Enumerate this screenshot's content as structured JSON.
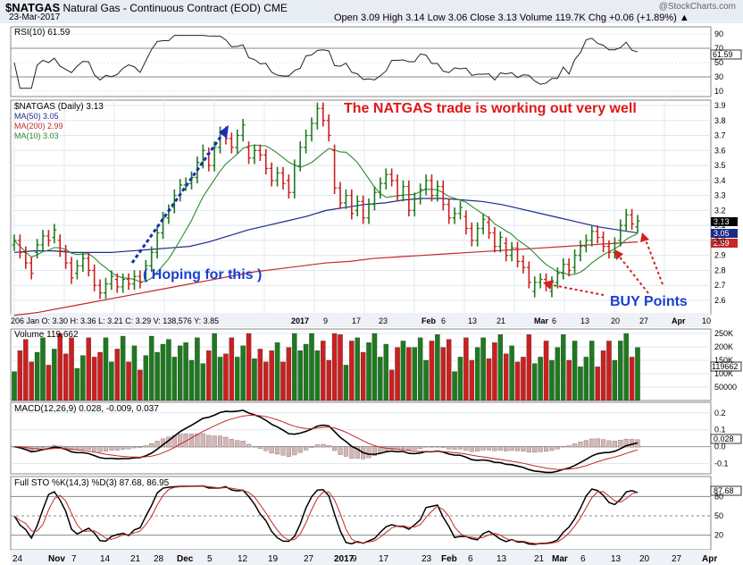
{
  "header": {
    "symbol": "$NATGAS",
    "description": "Natural Gas - Continuous Contract (EOD)",
    "exchange": "CME",
    "date": "23-Mar-2017",
    "ohlc_text": "Open 3.09  High 3.14  Low 3.06  Close 3.13  Volume 119.7K  Chg +0.06 (+1.89%) ▲",
    "watermark": "@StockCharts.com"
  },
  "colors": {
    "up": "#1e7a1e",
    "down": "#cc1f1f",
    "ma50": "#1b2a8a",
    "ma200": "#c62828",
    "ma10": "#2e8b2e",
    "price_line": "#f4a6a6",
    "panel_bg": "#ffffff"
  },
  "rsi_panel": {
    "label": "RSI(10) 61.59",
    "value_tag": "61.59",
    "ticks": [
      "90",
      "70",
      "50",
      "30",
      "10"
    ]
  },
  "price_panel": {
    "legend": [
      {
        "name": "$NATGAS (Daily) 3.13"
      },
      {
        "name": "MA(50) 3.05"
      },
      {
        "name": "MA(200) 2.99"
      },
      {
        "name": "MA(10) 3.03"
      }
    ],
    "annotation_title": "The NATGAS trade is working out very well",
    "annotation_hope": "( Hoping for this )",
    "annotation_buy": "BUY Points",
    "tags": [
      "3.13",
      "3.05",
      "3.03",
      "2.99"
    ],
    "y_ticks": [
      "3.9",
      "3.8",
      "3.7",
      "3.6",
      "3.5",
      "3.4",
      "3.3",
      "3.2",
      "3.1",
      "3.0",
      "2.9",
      "2.8",
      "2.7",
      "2.6"
    ],
    "info_line": "206 Jan  O: 3.30   H: 3.36   L: 3.21   C: 3.29   V: 138,576   Y: 3.85",
    "date_row": [
      "2017",
      "9",
      "17",
      "23",
      "Feb",
      "6",
      "13",
      "21",
      "Mar",
      "6",
      "13",
      "20",
      "27",
      "Apr",
      "10"
    ]
  },
  "volume_panel": {
    "label": "Volume 119,662",
    "value_tag": "119662",
    "ticks": [
      "250K",
      "200K",
      "150K",
      "100K",
      "50000"
    ]
  },
  "macd_panel": {
    "label": "MACD(12,26,9) 0.028, -0.009, 0.037",
    "value_tag": "0.028",
    "ticks": [
      "0.2",
      "0.1",
      "0.0",
      "-0.1"
    ]
  },
  "sto_panel": {
    "label": "Full STO %K(14,3) %D(3) 87.68, 86.95",
    "value_tag": "87.68",
    "ticks": [
      "80",
      "50",
      "20"
    ]
  },
  "x_axis": [
    "24",
    "Nov",
    "7",
    "14",
    "21",
    "28",
    "Dec",
    "5",
    "12",
    "19",
    "27",
    "2017",
    "9",
    "17",
    "23",
    "Feb",
    "6",
    "13",
    "21",
    "Mar",
    "6",
    "13",
    "20",
    "27",
    "Apr",
    "10"
  ],
  "chart_data": {
    "type": "candlestick",
    "title": "$NATGAS (Daily) 3.13",
    "x_range": [
      "24-Oct-2016",
      "23-Mar-2017"
    ],
    "ylim": [
      2.55,
      3.95
    ],
    "bars": [
      {
        "o": 2.97,
        "c": 3.0
      },
      {
        "o": 3.0,
        "c": 2.92
      },
      {
        "o": 2.92,
        "c": 2.85
      },
      {
        "o": 2.85,
        "c": 2.78
      },
      {
        "o": 2.92,
        "c": 2.97
      },
      {
        "o": 2.97,
        "c": 3.03
      },
      {
        "o": 3.03,
        "c": 3.0
      },
      {
        "o": 3.02,
        "c": 3.07
      },
      {
        "o": 3.0,
        "c": 2.93
      },
      {
        "o": 2.93,
        "c": 2.85
      },
      {
        "o": 2.85,
        "c": 2.75
      },
      {
        "o": 2.78,
        "c": 2.83
      },
      {
        "o": 2.83,
        "c": 2.88
      },
      {
        "o": 2.88,
        "c": 2.8
      },
      {
        "o": 2.8,
        "c": 2.7
      },
      {
        "o": 2.7,
        "c": 2.65
      },
      {
        "o": 2.65,
        "c": 2.71
      },
      {
        "o": 2.71,
        "c": 2.76
      },
      {
        "o": 2.74,
        "c": 2.69
      },
      {
        "o": 2.69,
        "c": 2.74
      },
      {
        "o": 2.74,
        "c": 2.71
      },
      {
        "o": 2.71,
        "c": 2.76
      },
      {
        "o": 2.76,
        "c": 2.72
      },
      {
        "o": 2.78,
        "c": 2.83
      },
      {
        "o": 2.83,
        "c": 2.92
      },
      {
        "o": 2.92,
        "c": 3.05
      },
      {
        "o": 3.05,
        "c": 3.15
      },
      {
        "o": 3.15,
        "c": 3.2
      },
      {
        "o": 3.22,
        "c": 3.3
      },
      {
        "o": 3.3,
        "c": 3.37
      },
      {
        "o": 3.37,
        "c": 3.38
      },
      {
        "o": 3.38,
        "c": 3.42
      },
      {
        "o": 3.42,
        "c": 3.52
      },
      {
        "o": 3.52,
        "c": 3.6
      },
      {
        "o": 3.58,
        "c": 3.5
      },
      {
        "o": 3.5,
        "c": 3.62
      },
      {
        "o": 3.62,
        "c": 3.72
      },
      {
        "o": 3.72,
        "c": 3.68
      },
      {
        "o": 3.68,
        "c": 3.62
      },
      {
        "o": 3.62,
        "c": 3.7
      },
      {
        "o": 3.7,
        "c": 3.77
      },
      {
        "o": 3.62,
        "c": 3.55
      },
      {
        "o": 3.55,
        "c": 3.6
      },
      {
        "o": 3.6,
        "c": 3.57
      },
      {
        "o": 3.57,
        "c": 3.48
      },
      {
        "o": 3.48,
        "c": 3.4
      },
      {
        "o": 3.4,
        "c": 3.45
      },
      {
        "o": 3.45,
        "c": 3.38
      },
      {
        "o": 3.4,
        "c": 3.32
      },
      {
        "o": 3.32,
        "c": 3.5
      },
      {
        "o": 3.5,
        "c": 3.62
      },
      {
        "o": 3.62,
        "c": 3.7
      },
      {
        "o": 3.7,
        "c": 3.78
      },
      {
        "o": 3.78,
        "c": 3.88
      },
      {
        "o": 3.88,
        "c": 3.8
      },
      {
        "o": 3.8,
        "c": 3.7
      },
      {
        "o": 3.6,
        "c": 3.35
      },
      {
        "o": 3.35,
        "c": 3.25
      },
      {
        "o": 3.25,
        "c": 3.3
      },
      {
        "o": 3.3,
        "c": 3.18
      },
      {
        "o": 3.2,
        "c": 3.26
      },
      {
        "o": 3.26,
        "c": 3.15
      },
      {
        "o": 3.15,
        "c": 3.24
      },
      {
        "o": 3.24,
        "c": 3.32
      },
      {
        "o": 3.32,
        "c": 3.38
      },
      {
        "o": 3.38,
        "c": 3.44
      },
      {
        "o": 3.44,
        "c": 3.4
      },
      {
        "o": 3.4,
        "c": 3.3
      },
      {
        "o": 3.3,
        "c": 3.36
      },
      {
        "o": 3.36,
        "c": 3.2
      },
      {
        "o": 3.2,
        "c": 3.28
      },
      {
        "o": 3.28,
        "c": 3.34
      },
      {
        "o": 3.34,
        "c": 3.4
      },
      {
        "o": 3.4,
        "c": 3.3
      },
      {
        "o": 3.3,
        "c": 3.36
      },
      {
        "o": 3.36,
        "c": 3.24
      },
      {
        "o": 3.24,
        "c": 3.15
      },
      {
        "o": 3.15,
        "c": 3.18
      },
      {
        "o": 3.18,
        "c": 3.22
      },
      {
        "o": 3.16,
        "c": 3.08
      },
      {
        "o": 3.08,
        "c": 3.0
      },
      {
        "o": 3.0,
        "c": 3.08
      },
      {
        "o": 3.08,
        "c": 3.14
      },
      {
        "o": 3.12,
        "c": 3.05
      },
      {
        "o": 3.05,
        "c": 2.96
      },
      {
        "o": 2.96,
        "c": 3.02
      },
      {
        "o": 2.98,
        "c": 2.9
      },
      {
        "o": 2.9,
        "c": 2.95
      },
      {
        "o": 2.95,
        "c": 2.86
      },
      {
        "o": 2.86,
        "c": 2.82
      },
      {
        "o": 2.82,
        "c": 2.72
      },
      {
        "o": 2.66,
        "c": 2.72
      },
      {
        "o": 2.72,
        "c": 2.74
      },
      {
        "o": 2.74,
        "c": 2.7
      },
      {
        "o": 2.66,
        "c": 2.72
      },
      {
        "o": 2.72,
        "c": 2.78
      },
      {
        "o": 2.78,
        "c": 2.84
      },
      {
        "o": 2.84,
        "c": 2.8
      },
      {
        "o": 2.82,
        "c": 2.9
      },
      {
        "o": 2.9,
        "c": 2.96
      },
      {
        "o": 2.96,
        "c": 3.0
      },
      {
        "o": 3.0,
        "c": 3.06
      },
      {
        "o": 3.06,
        "c": 3.02
      },
      {
        "o": 3.02,
        "c": 2.96
      },
      {
        "o": 2.96,
        "c": 2.92
      },
      {
        "o": 2.92,
        "c": 2.98
      },
      {
        "o": 3.0,
        "c": 3.1
      },
      {
        "o": 3.1,
        "c": 3.17
      },
      {
        "o": 3.17,
        "c": 3.11
      },
      {
        "o": 3.09,
        "c": 3.13
      }
    ],
    "series": [
      {
        "name": "MA(50) 3.05",
        "values": [
          2.92,
          2.93,
          2.93,
          2.92,
          2.92,
          2.92,
          2.93,
          2.94,
          2.95,
          2.96,
          2.99,
          3.03,
          3.07,
          3.1,
          3.13,
          3.16,
          3.2,
          3.22,
          3.24,
          3.25,
          3.27,
          3.28,
          3.28,
          3.27,
          3.26,
          3.24,
          3.21,
          3.18,
          3.15,
          3.12,
          3.09,
          3.07,
          3.05
        ]
      },
      {
        "name": "MA(200) 2.99",
        "values": [
          2.5,
          2.52,
          2.55,
          2.58,
          2.61,
          2.64,
          2.67,
          2.7,
          2.73,
          2.76,
          2.79,
          2.81,
          2.83,
          2.85,
          2.86,
          2.88,
          2.89,
          2.9,
          2.91,
          2.92,
          2.93,
          2.94,
          2.95,
          2.96,
          2.97,
          2.98,
          2.99
        ]
      }
    ]
  }
}
